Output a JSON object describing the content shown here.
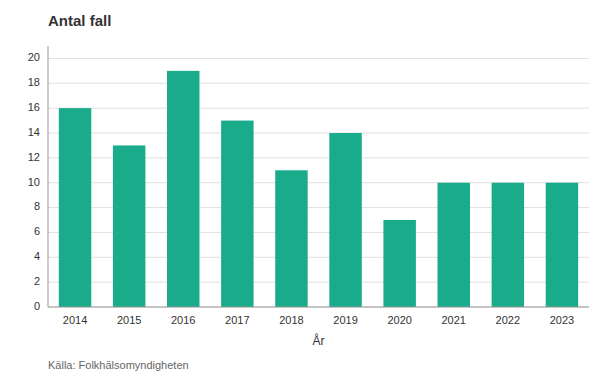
{
  "chart_data": {
    "type": "bar",
    "title": "Antal fall",
    "categories": [
      "2014",
      "2015",
      "2016",
      "2017",
      "2018",
      "2019",
      "2020",
      "2021",
      "2022",
      "2023"
    ],
    "values": [
      16,
      13,
      19,
      15,
      11,
      14,
      7,
      10,
      10,
      10
    ],
    "color": "#1aab8a",
    "xlabel": "År",
    "annotations": [
      "Källa: Folkhälsomyndigheten"
    ],
    "ylim": [
      0,
      21
    ],
    "yticks": [
      0,
      2,
      4,
      6,
      8,
      10,
      12,
      14,
      16,
      18,
      20
    ],
    "grid": true
  }
}
